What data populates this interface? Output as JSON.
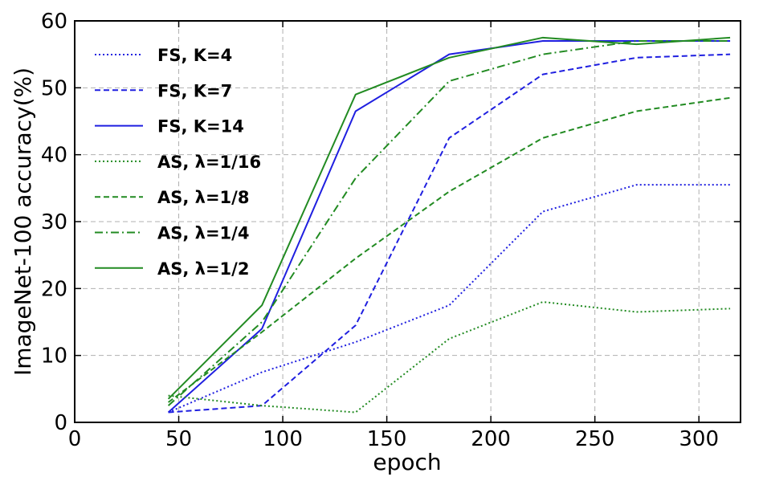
{
  "chart_data": {
    "type": "line",
    "title": "",
    "xlabel": "epoch",
    "ylabel": "ImageNet-100 accuracy(%)",
    "xlim": [
      0,
      320
    ],
    "ylim": [
      0,
      60
    ],
    "xticks": [
      0,
      50,
      100,
      150,
      200,
      250,
      300
    ],
    "yticks": [
      0,
      10,
      20,
      30,
      40,
      50,
      60
    ],
    "grid": true,
    "legend_position": "upper-left",
    "x": [
      45,
      90,
      135,
      180,
      225,
      270,
      315
    ],
    "series": [
      {
        "name": "FS, K=4",
        "color": "#1f1fe0",
        "style": "dotted",
        "values": [
          1.5,
          7.5,
          12.0,
          17.5,
          31.5,
          35.5,
          35.5
        ]
      },
      {
        "name": "FS, K=7",
        "color": "#1f1fe0",
        "style": "dashed",
        "values": [
          1.5,
          2.5,
          14.5,
          42.5,
          52.0,
          54.5,
          55.0
        ]
      },
      {
        "name": "FS, K=14",
        "color": "#1f1fe0",
        "style": "solid",
        "values": [
          1.5,
          14.0,
          46.5,
          55.0,
          57.0,
          57.0,
          57.0
        ]
      },
      {
        "name": "AS, λ=1/16",
        "color": "#228b22",
        "style": "dotted",
        "values": [
          4.0,
          2.5,
          1.5,
          12.5,
          18.0,
          16.5,
          17.0
        ]
      },
      {
        "name": "AS, λ=1/8",
        "color": "#228b22",
        "style": "dashed",
        "values": [
          3.0,
          13.5,
          24.5,
          34.5,
          42.5,
          46.5,
          48.5
        ]
      },
      {
        "name": "AS, λ=1/4",
        "color": "#228b22",
        "style": "dashdot",
        "values": [
          2.5,
          15.0,
          36.5,
          51.0,
          55.0,
          57.0,
          57.0
        ]
      },
      {
        "name": "AS, λ=1/2",
        "color": "#228b22",
        "style": "solid",
        "values": [
          3.5,
          17.5,
          49.0,
          54.5,
          57.5,
          56.5,
          57.5
        ]
      }
    ]
  }
}
